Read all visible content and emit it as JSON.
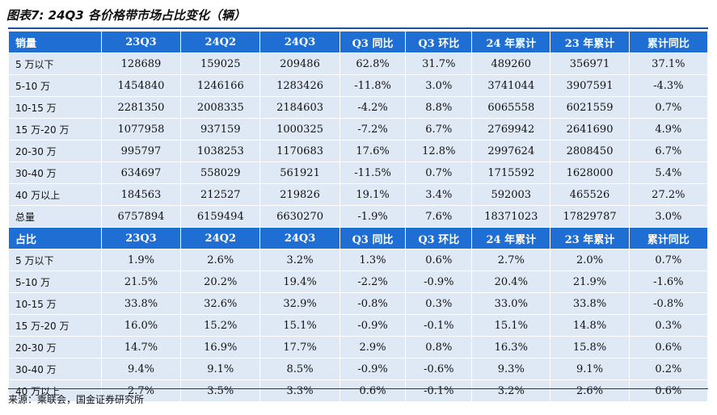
{
  "title": "图表7: 24Q3 各价格带市场占比变化（辆）",
  "colors": {
    "header_bg": "#1f6ed4",
    "row_bg": "#dfe9f6",
    "rule": "#1f4e9a"
  },
  "sales": {
    "headers": [
      "销量",
      "23Q3",
      "24Q2",
      "24Q3",
      "Q3 同比",
      "Q3 环比",
      "24 年累计",
      "23 年累计",
      "累计同比"
    ],
    "rows": [
      [
        "5 万以下",
        "128689",
        "159025",
        "209486",
        "62.8%",
        "31.7%",
        "489260",
        "356971",
        "37.1%"
      ],
      [
        "5-10 万",
        "1454840",
        "1246166",
        "1283426",
        "-11.8%",
        "3.0%",
        "3741044",
        "3907591",
        "-4.3%"
      ],
      [
        "10-15 万",
        "2281350",
        "2008335",
        "2184603",
        "-4.2%",
        "8.8%",
        "6065558",
        "6021559",
        "0.7%"
      ],
      [
        "15 万-20 万",
        "1077958",
        "937159",
        "1000325",
        "-7.2%",
        "6.7%",
        "2769942",
        "2641690",
        "4.9%"
      ],
      [
        "20-30 万",
        "995797",
        "1038253",
        "1170683",
        "17.6%",
        "12.8%",
        "2997624",
        "2808450",
        "6.7%"
      ],
      [
        "30-40 万",
        "634697",
        "558029",
        "561921",
        "-11.5%",
        "0.7%",
        "1715592",
        "1628000",
        "5.4%"
      ],
      [
        "40 万以上",
        "184563",
        "212527",
        "219826",
        "19.1%",
        "3.4%",
        "592003",
        "465526",
        "27.2%"
      ],
      [
        "总量",
        "6757894",
        "6159494",
        "6630270",
        "-1.9%",
        "7.6%",
        "18371023",
        "17829787",
        "3.0%"
      ]
    ]
  },
  "share": {
    "headers": [
      "占比",
      "23Q3",
      "24Q2",
      "24Q3",
      "Q3 同比",
      "Q3 环比",
      "24 年累计",
      "23 年累计",
      "累计同比"
    ],
    "rows": [
      [
        "5 万以下",
        "1.9%",
        "2.6%",
        "3.2%",
        "1.3%",
        "0.6%",
        "2.7%",
        "2.0%",
        "0.7%"
      ],
      [
        "5-10 万",
        "21.5%",
        "20.2%",
        "19.4%",
        "-2.2%",
        "-0.9%",
        "20.4%",
        "21.9%",
        "-1.6%"
      ],
      [
        "10-15 万",
        "33.8%",
        "32.6%",
        "32.9%",
        "-0.8%",
        "0.3%",
        "33.0%",
        "33.8%",
        "-0.8%"
      ],
      [
        "15 万-20 万",
        "16.0%",
        "15.2%",
        "15.1%",
        "-0.9%",
        "-0.1%",
        "15.1%",
        "14.8%",
        "0.3%"
      ],
      [
        "20-30 万",
        "14.7%",
        "16.9%",
        "17.7%",
        "2.9%",
        "0.8%",
        "16.3%",
        "15.8%",
        "0.6%"
      ],
      [
        "30-40 万",
        "9.4%",
        "9.1%",
        "8.5%",
        "-0.9%",
        "-0.6%",
        "9.3%",
        "9.1%",
        "0.2%"
      ],
      [
        "40 万以上",
        "2.7%",
        "3.5%",
        "3.3%",
        "0.6%",
        "-0.1%",
        "3.2%",
        "2.6%",
        "0.6%"
      ]
    ]
  },
  "source": "来源：乘联会，国金证券研究所"
}
